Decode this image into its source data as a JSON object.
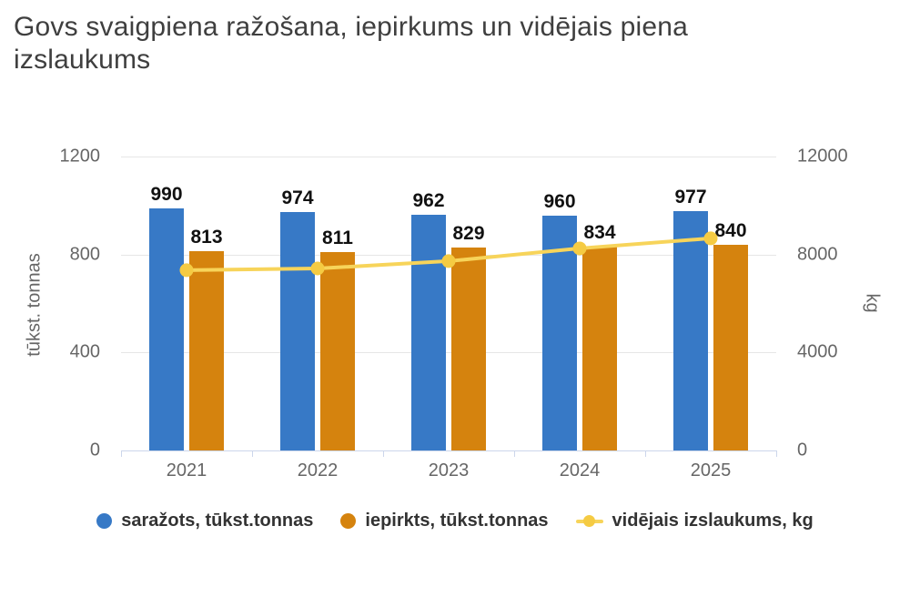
{
  "title": "Govs svaigpiena ražošana, iepirkums un vidējais piena izslaukums",
  "chart_data": {
    "type": "bar+line combo",
    "categories": [
      "2021",
      "2022",
      "2023",
      "2024",
      "2025"
    ],
    "series": [
      {
        "name": "saražots, tūkst.tonnas",
        "type": "bar",
        "axis": "left",
        "color": "#3779C6",
        "values": [
          990,
          974,
          962,
          960,
          977
        ],
        "data_labels": [
          "990",
          "974",
          "962",
          "960",
          "977"
        ]
      },
      {
        "name": "iepirkts, tūkst.tonnas",
        "type": "bar",
        "axis": "left",
        "color": "#D5830E",
        "values": [
          813,
          811,
          829,
          834,
          840
        ],
        "data_labels": [
          "813",
          "811",
          "829",
          "834",
          "840"
        ]
      },
      {
        "name": "vidējais izslaukums, kg",
        "type": "line",
        "axis": "right",
        "color": "#F7D45A",
        "marker_color": "#F5CB43",
        "values": [
          7360,
          7430,
          7730,
          8250,
          8660
        ],
        "data_labels": []
      }
    ],
    "left_axis": {
      "title": "tūkst. tonnas",
      "tick_labels": [
        "0",
        "400",
        "800",
        "1200"
      ],
      "tick_values": [
        0,
        400,
        800,
        1200
      ],
      "min": 0,
      "max": 1200
    },
    "right_axis": {
      "title": "kg",
      "tick_labels": [
        "0",
        "4000",
        "8000",
        "12000"
      ],
      "tick_values": [
        0,
        4000,
        8000,
        12000
      ],
      "min": 0,
      "max": 12000
    },
    "legend_position": "bottom",
    "grid": true
  },
  "colors": {
    "background": "#FFFFFF",
    "title_text": "#3F3F3F",
    "axis_text": "#666666",
    "legend_text": "#333333",
    "data_label_text": "#111111",
    "gridline": "#E6E6E6",
    "axis_line": "#CCD6EB"
  }
}
